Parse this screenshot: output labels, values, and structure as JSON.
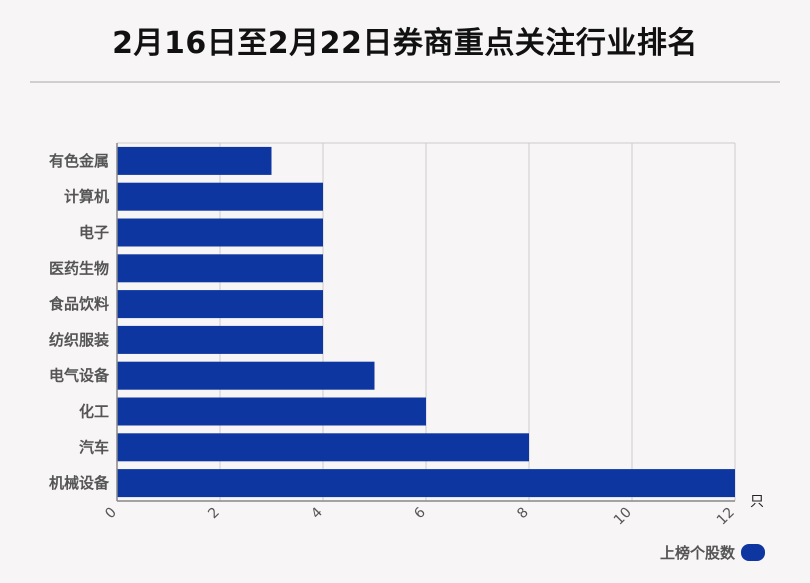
{
  "title": "2月16日至2月22日券商重点关注行业排名",
  "colors": {
    "bar": "#0d36a0",
    "grid": "#cccccc",
    "axis": "#888888",
    "label": "#555555"
  },
  "chart_data": {
    "type": "bar",
    "orientation": "horizontal",
    "title": "2月16日至2月22日券商重点关注行业排名",
    "categories": [
      "有色金属",
      "计算机",
      "电子",
      "医药生物",
      "食品饮料",
      "纺织服装",
      "电气设备",
      "化工",
      "汽车",
      "机械设备"
    ],
    "series": [
      {
        "name": "上榜个股数",
        "values": [
          3,
          4,
          4,
          4,
          4,
          4,
          5,
          6,
          8,
          12
        ]
      }
    ],
    "xlim": [
      0,
      12
    ],
    "xticks": [
      "0",
      "2",
      "4",
      "6",
      "8",
      "10",
      "12"
    ],
    "xunit": "只",
    "grid": true,
    "legend_position": "bottom-right"
  },
  "legend": {
    "label": "上榜个股数"
  }
}
